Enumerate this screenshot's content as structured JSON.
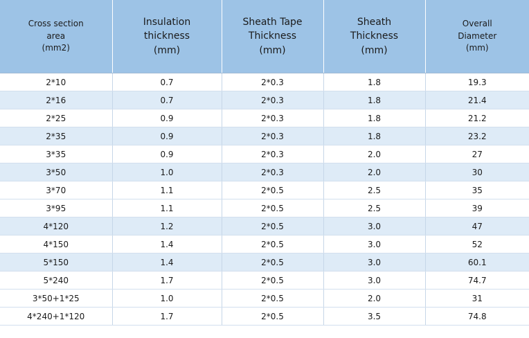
{
  "table": {
    "headers": [
      {
        "lines": [
          "Cross section",
          "area",
          "(mm2)"
        ],
        "size": "small"
      },
      {
        "lines": [
          "Insulation",
          "thickness",
          "(mm)"
        ],
        "size": "large"
      },
      {
        "lines": [
          "Sheath Tape",
          "Thickness",
          "(mm)"
        ],
        "size": "large"
      },
      {
        "lines": [
          "Sheath",
          "Thickness",
          "(mm)"
        ],
        "size": "large"
      },
      {
        "lines": [
          "Overall",
          "Diameter",
          "(mm)"
        ],
        "size": "small"
      }
    ],
    "rows": [
      [
        "2*10",
        "0.7",
        "2*0.3",
        "1.8",
        "19.3"
      ],
      [
        "2*16",
        "0.7",
        "2*0.3",
        "1.8",
        "21.4"
      ],
      [
        "2*25",
        "0.9",
        "2*0.3",
        "1.8",
        "21.2"
      ],
      [
        "2*35",
        "0.9",
        "2*0.3",
        "1.8",
        "23.2"
      ],
      [
        "3*35",
        "0.9",
        "2*0.3",
        "2.0",
        "27"
      ],
      [
        "3*50",
        "1.0",
        "2*0.3",
        "2.0",
        "30"
      ],
      [
        "3*70",
        "1.1",
        "2*0.5",
        "2.5",
        "35"
      ],
      [
        "3*95",
        "1.1",
        "2*0.5",
        "2.5",
        "39"
      ],
      [
        "4*120",
        "1.2",
        "2*0.5",
        "3.0",
        "47"
      ],
      [
        "4*150",
        "1.4",
        "2*0.5",
        "3.0",
        "52"
      ],
      [
        "5*150",
        "1.4",
        "2*0.5",
        "3.0",
        "60.1"
      ],
      [
        "5*240",
        "1.7",
        "2*0.5",
        "3.0",
        "74.7"
      ],
      [
        "3*50+1*25",
        "1.0",
        "2*0.5",
        "2.0",
        "31"
      ],
      [
        "4*240+1*120",
        "1.7",
        "2*0.5",
        "3.5",
        "74.8"
      ]
    ]
  },
  "colors": {
    "header_bg": "#9dc3e6",
    "row_alt_bg": "#deebf7",
    "row_bg": "#ffffff"
  }
}
